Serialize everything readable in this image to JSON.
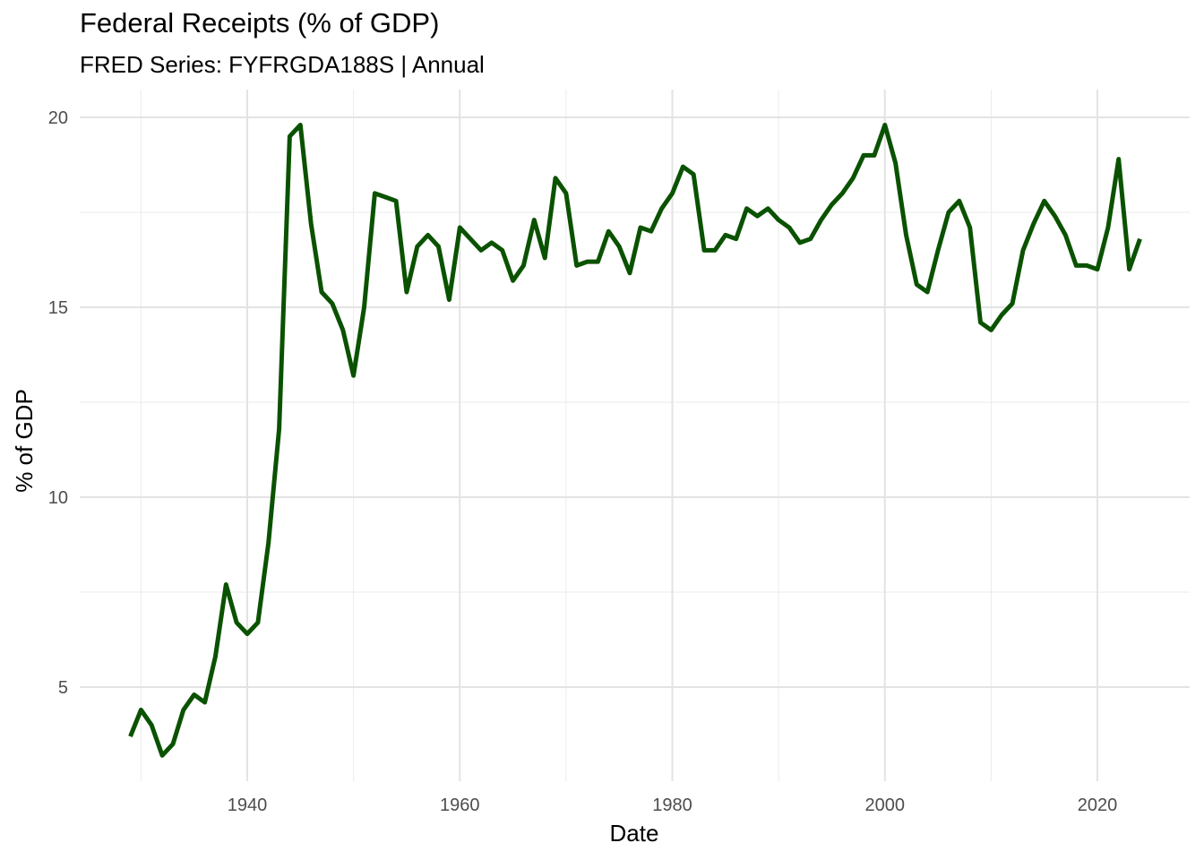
{
  "chart_data": {
    "type": "line",
    "title": "Federal Receipts (% of GDP)",
    "subtitle": "FRED Series: FYFRGDA188S | Annual",
    "xlabel": "Date",
    "ylabel": "% of GDP",
    "xlim": [
      1925,
      2028
    ],
    "ylim": [
      2.5,
      20.3
    ],
    "x_ticks": [
      1940,
      1960,
      1980,
      2000,
      2020
    ],
    "y_ticks": [
      5,
      10,
      15,
      20
    ],
    "grid": true,
    "line_color": "#0a5200",
    "series": [
      {
        "x": [
          1929,
          1930,
          1931,
          1932,
          1933,
          1934,
          1935,
          1936,
          1937,
          1938,
          1939,
          1940,
          1941,
          1942,
          1943,
          1944,
          1945,
          1946,
          1947,
          1948,
          1949,
          1950,
          1951,
          1952,
          1953,
          1954,
          1955,
          1956,
          1957,
          1958,
          1959,
          1960,
          1961,
          1962,
          1963,
          1964,
          1965,
          1966,
          1967,
          1968,
          1969,
          1970,
          1971,
          1972,
          1973,
          1974,
          1975,
          1976,
          1977,
          1978,
          1979,
          1980,
          1981,
          1982,
          1983,
          1984,
          1985,
          1986,
          1987,
          1988,
          1989,
          1990,
          1991,
          1992,
          1993,
          1994,
          1995,
          1996,
          1997,
          1998,
          1999,
          2000,
          2001,
          2002,
          2003,
          2004,
          2005,
          2006,
          2007,
          2008,
          2009,
          2010,
          2011,
          2012,
          2013,
          2014,
          2015,
          2016,
          2017,
          2018,
          2019,
          2020,
          2021,
          2022,
          2023,
          2024
        ],
        "values": [
          3.7,
          4.4,
          4.0,
          3.2,
          3.5,
          4.4,
          4.8,
          4.6,
          5.8,
          7.7,
          6.7,
          6.4,
          6.7,
          8.8,
          11.8,
          19.5,
          19.8,
          17.2,
          15.4,
          15.1,
          14.4,
          13.2,
          15.0,
          18.0,
          17.9,
          17.8,
          15.4,
          16.6,
          16.9,
          16.6,
          15.2,
          17.1,
          16.8,
          16.5,
          16.7,
          16.5,
          15.7,
          16.1,
          17.3,
          16.3,
          18.4,
          18.0,
          16.1,
          16.2,
          16.2,
          17.0,
          16.6,
          15.9,
          17.1,
          17.0,
          17.6,
          18.0,
          18.7,
          18.5,
          16.5,
          16.5,
          16.9,
          16.8,
          17.6,
          17.4,
          17.6,
          17.3,
          17.1,
          16.7,
          16.8,
          17.3,
          17.7,
          18.0,
          18.4,
          19.0,
          19.0,
          19.8,
          18.8,
          16.9,
          15.6,
          15.4,
          16.5,
          17.5,
          17.8,
          17.1,
          14.6,
          14.4,
          14.8,
          15.1,
          16.5,
          17.2,
          17.8,
          17.4,
          16.9,
          16.1,
          16.1,
          16.0,
          17.1,
          18.9,
          16.0,
          16.8
        ]
      }
    ]
  }
}
